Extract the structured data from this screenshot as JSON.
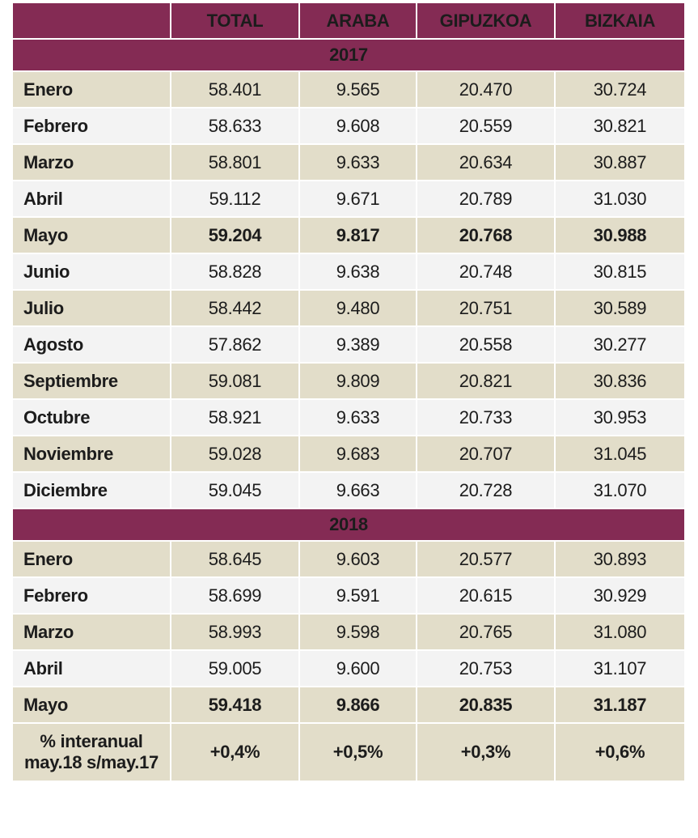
{
  "header": {
    "blank": "",
    "columns": [
      "TOTAL",
      "ARABA",
      "GIPUZKOA",
      "BIZKAIA"
    ]
  },
  "sections": [
    {
      "year": "2017",
      "rows": [
        {
          "month": "Enero",
          "total": "58.401",
          "araba": "9.565",
          "gipuzkoa": "20.470",
          "bizkaia": "30.724"
        },
        {
          "month": "Febrero",
          "total": "58.633",
          "araba": "9.608",
          "gipuzkoa": "20.559",
          "bizkaia": "30.821"
        },
        {
          "month": "Marzo",
          "total": "58.801",
          "araba": "9.633",
          "gipuzkoa": "20.634",
          "bizkaia": "30.887"
        },
        {
          "month": "Abril",
          "total": "59.112",
          "araba": "9.671",
          "gipuzkoa": "20.789",
          "bizkaia": "31.030"
        },
        {
          "month": "Mayo",
          "total": "59.204",
          "araba": "9.817",
          "gipuzkoa": "20.768",
          "bizkaia": "30.988"
        },
        {
          "month": "Junio",
          "total": "58.828",
          "araba": "9.638",
          "gipuzkoa": "20.748",
          "bizkaia": "30.815"
        },
        {
          "month": "Julio",
          "total": "58.442",
          "araba": "9.480",
          "gipuzkoa": "20.751",
          "bizkaia": "30.589"
        },
        {
          "month": "Agosto",
          "total": "57.862",
          "araba": "9.389",
          "gipuzkoa": "20.558",
          "bizkaia": "30.277"
        },
        {
          "month": "Septiembre",
          "total": "59.081",
          "araba": "9.809",
          "gipuzkoa": "20.821",
          "bizkaia": "30.836"
        },
        {
          "month": "Octubre",
          "total": "58.921",
          "araba": "9.633",
          "gipuzkoa": "20.733",
          "bizkaia": "30.953"
        },
        {
          "month": "Noviembre",
          "total": "59.028",
          "araba": "9.683",
          "gipuzkoa": "20.707",
          "bizkaia": "31.045"
        },
        {
          "month": "Diciembre",
          "total": "59.045",
          "araba": "9.663",
          "gipuzkoa": "20.728",
          "bizkaia": "31.070"
        }
      ]
    },
    {
      "year": "2018",
      "rows": [
        {
          "month": "Enero",
          "total": "58.645",
          "araba": "9.603",
          "gipuzkoa": "20.577",
          "bizkaia": "30.893"
        },
        {
          "month": "Febrero",
          "total": "58.699",
          "araba": "9.591",
          "gipuzkoa": "20.615",
          "bizkaia": "30.929"
        },
        {
          "month": "Marzo",
          "total": "58.993",
          "araba": "9.598",
          "gipuzkoa": "20.765",
          "bizkaia": "31.080"
        },
        {
          "month": "Abril",
          "total": "59.005",
          "araba": "9.600",
          "gipuzkoa": "20.753",
          "bizkaia": "31.107"
        },
        {
          "month": "Mayo",
          "total": "59.418",
          "araba": "9.866",
          "gipuzkoa": "20.835",
          "bizkaia": "31.187"
        }
      ]
    }
  ],
  "footer": {
    "label_line1": "% interanual",
    "label_line2": "may.18 s/may.17",
    "total": "+0,4%",
    "araba": "+0,5%",
    "gipuzkoa": "+0,3%",
    "bizkaia": "+0,6%"
  },
  "colors": {
    "header_bg": "#842b54",
    "highlight_text": "#842b54",
    "odd_row_bg": "#e2ddc9",
    "even_row_bg": "#f3f3f3"
  }
}
